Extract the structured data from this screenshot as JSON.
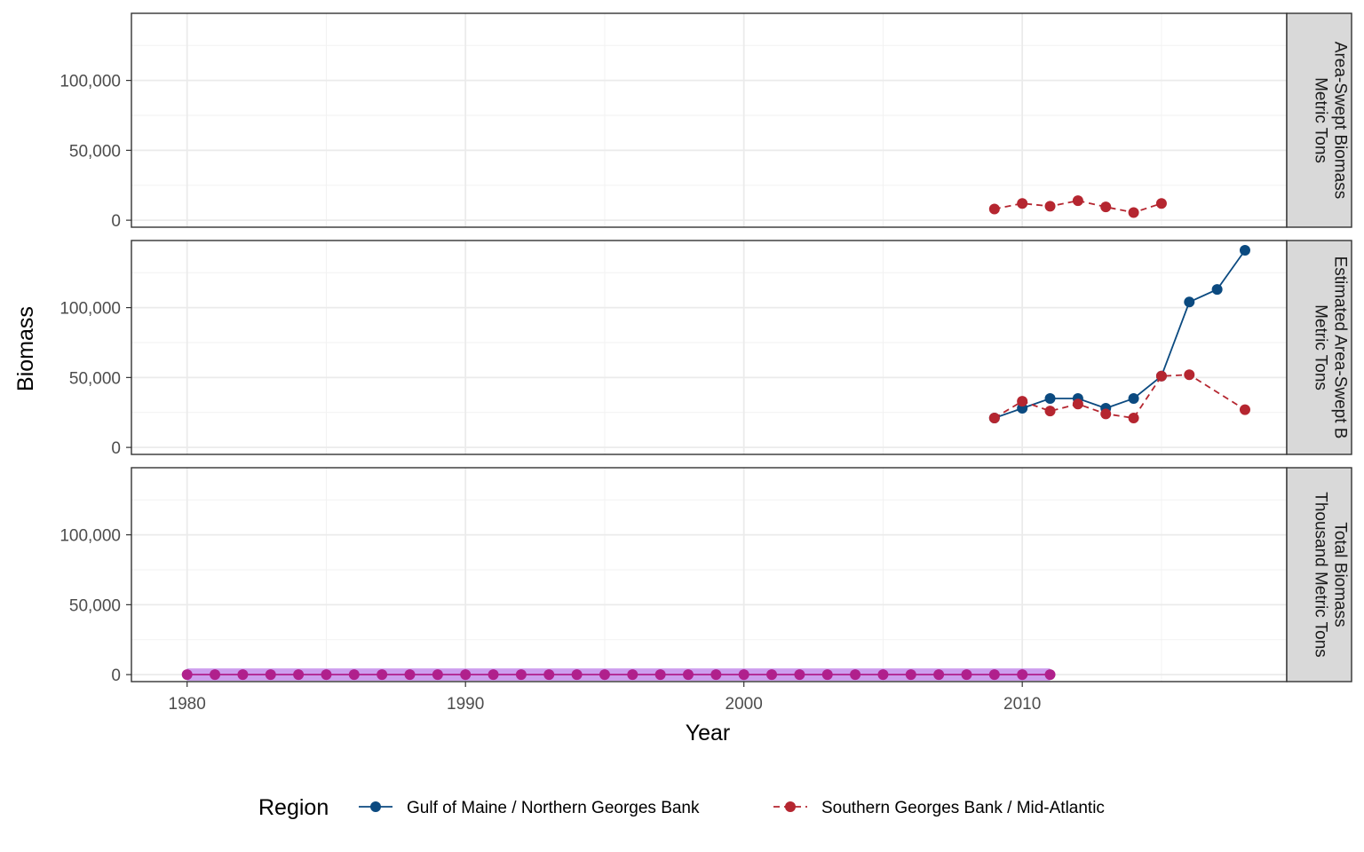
{
  "chart_data": {
    "type": "line",
    "xlabel": "Year",
    "ylabel": "Biomass",
    "xlim": [
      1978,
      2019.5
    ],
    "ylim": [
      -5000,
      148000
    ],
    "x_ticks": [
      1980,
      1990,
      2000,
      2010
    ],
    "y_ticks": [
      0,
      50000,
      100000
    ],
    "y_tick_labels": [
      "0",
      "50,000",
      "100,000"
    ],
    "grid": true,
    "legend": {
      "title": "Region",
      "position": "bottom",
      "entries": [
        {
          "label": "Gulf of Maine / Northern Georges Bank",
          "color": "#0b4a80",
          "dash": "solid"
        },
        {
          "label": "Southern Georges Bank / Mid-Atlantic",
          "color": "#b52630",
          "dash": "dashed"
        }
      ]
    },
    "panels": [
      {
        "strip_lines": [
          "Area-Swept Biomass",
          "Metric Tons"
        ],
        "series": [
          {
            "name": "Southern Georges Bank / Mid-Atlantic",
            "color": "#b52630",
            "dash": "dashed",
            "points": [
              [
                2009,
                8000
              ],
              [
                2010,
                12000
              ],
              [
                2011,
                10000
              ],
              [
                2012,
                14000
              ],
              [
                2013,
                9500
              ],
              [
                2014,
                5500
              ],
              [
                2015,
                12000
              ]
            ]
          }
        ]
      },
      {
        "strip_lines": [
          "Estimated Area-Swept B",
          "Metric Tons"
        ],
        "series": [
          {
            "name": "Gulf of Maine / Northern Georges Bank",
            "color": "#0b4a80",
            "dash": "solid",
            "points": [
              [
                2009,
                21000
              ],
              [
                2010,
                28000
              ],
              [
                2011,
                35000
              ],
              [
                2012,
                35000
              ],
              [
                2013,
                28000
              ],
              [
                2014,
                35000
              ],
              [
                2015,
                51000
              ],
              [
                2016,
                104000
              ],
              [
                2017,
                113000
              ],
              [
                2018,
                141000
              ]
            ]
          },
          {
            "name": "Southern Georges Bank / Mid-Atlantic",
            "color": "#b52630",
            "dash": "dashed",
            "points": [
              [
                2009,
                21000
              ],
              [
                2010,
                33000
              ],
              [
                2011,
                26000
              ],
              [
                2012,
                31000
              ],
              [
                2013,
                24000
              ],
              [
                2014,
                21000
              ],
              [
                2015,
                51000
              ],
              [
                2016,
                52000
              ],
              [
                2018,
                27000
              ]
            ]
          }
        ]
      },
      {
        "strip_lines": [
          "Total Biomass",
          "Thousand Metric Tons"
        ],
        "series": [
          {
            "color": "#b0208c",
            "dash": "solid",
            "band_color": "#a44ee0",
            "points": [
              [
                1980,
                0
              ],
              [
                1981,
                0
              ],
              [
                1982,
                0
              ],
              [
                1983,
                0
              ],
              [
                1984,
                0
              ],
              [
                1985,
                0
              ],
              [
                1986,
                0
              ],
              [
                1987,
                0
              ],
              [
                1988,
                0
              ],
              [
                1989,
                0
              ],
              [
                1990,
                0
              ],
              [
                1991,
                0
              ],
              [
                1992,
                0
              ],
              [
                1993,
                0
              ],
              [
                1994,
                0
              ],
              [
                1995,
                0
              ],
              [
                1996,
                0
              ],
              [
                1997,
                0
              ],
              [
                1998,
                0
              ],
              [
                1999,
                0
              ],
              [
                2000,
                0
              ],
              [
                2001,
                0
              ],
              [
                2002,
                0
              ],
              [
                2003,
                0
              ],
              [
                2004,
                0
              ],
              [
                2005,
                0
              ],
              [
                2006,
                0
              ],
              [
                2007,
                0
              ],
              [
                2008,
                0
              ],
              [
                2009,
                0
              ],
              [
                2010,
                0
              ],
              [
                2011,
                0
              ]
            ]
          }
        ]
      }
    ]
  }
}
